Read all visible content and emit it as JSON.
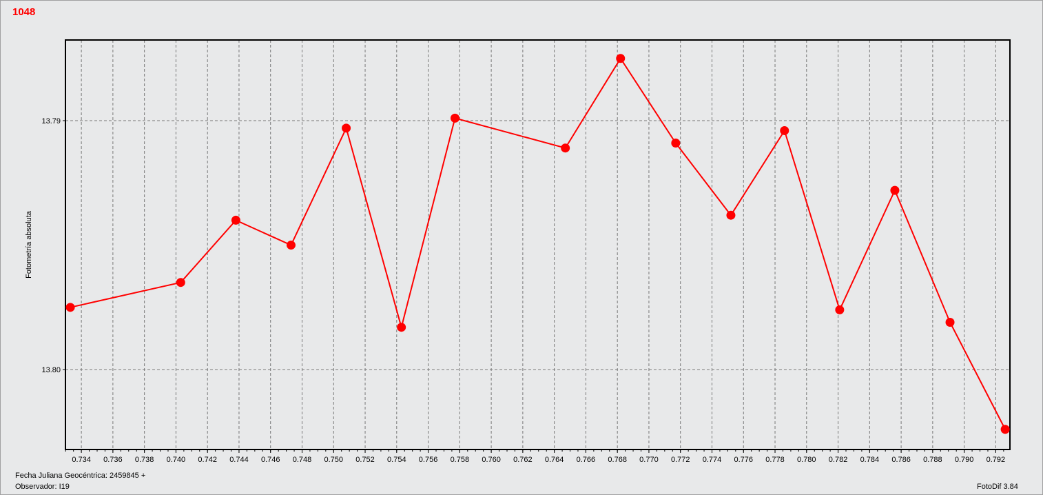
{
  "title": "1048",
  "footer": {
    "date_label": "Fecha Juliana Geocéntrica: 2459845 +",
    "observer": "Observador: I19",
    "software": "FotoDif 3.84"
  },
  "chart_data": {
    "type": "line",
    "title": "1048",
    "xlabel": "Fecha Juliana Geocéntrica: 2459845 +",
    "ylabel": "Fotometría absoluta",
    "xlim": [
      0.73299,
      0.7929
    ],
    "ylim": [
      13.80321,
      13.78676
    ],
    "y_inverted": true,
    "grid": true,
    "x_ticks": [
      "0.734",
      "0.736",
      "0.738",
      "0.740",
      "0.742",
      "0.744",
      "0.746",
      "0.748",
      "0.750",
      "0.752",
      "0.754",
      "0.756",
      "0.758",
      "0.760",
      "0.762",
      "0.764",
      "0.766",
      "0.768",
      "0.770",
      "0.772",
      "0.774",
      "0.776",
      "0.778",
      "0.780",
      "0.782",
      "0.784",
      "0.786",
      "0.788",
      "0.790",
      "0.792"
    ],
    "y_ticks": [
      "13.79",
      "13.80"
    ],
    "color": "#ff0000",
    "x": [
      0.7333,
      0.7403,
      0.7438,
      0.7473,
      0.7508,
      0.7543,
      0.7577,
      0.7647,
      0.7682,
      0.7717,
      0.7752,
      0.7786,
      0.7821,
      0.7856,
      0.7891,
      0.7926
    ],
    "y": [
      13.7975,
      13.7965,
      13.794,
      13.795,
      13.7903,
      13.7983,
      13.7899,
      13.7911,
      13.7875,
      13.7909,
      13.7938,
      13.7904,
      13.7976,
      13.7928,
      13.7981,
      13.8024
    ]
  }
}
